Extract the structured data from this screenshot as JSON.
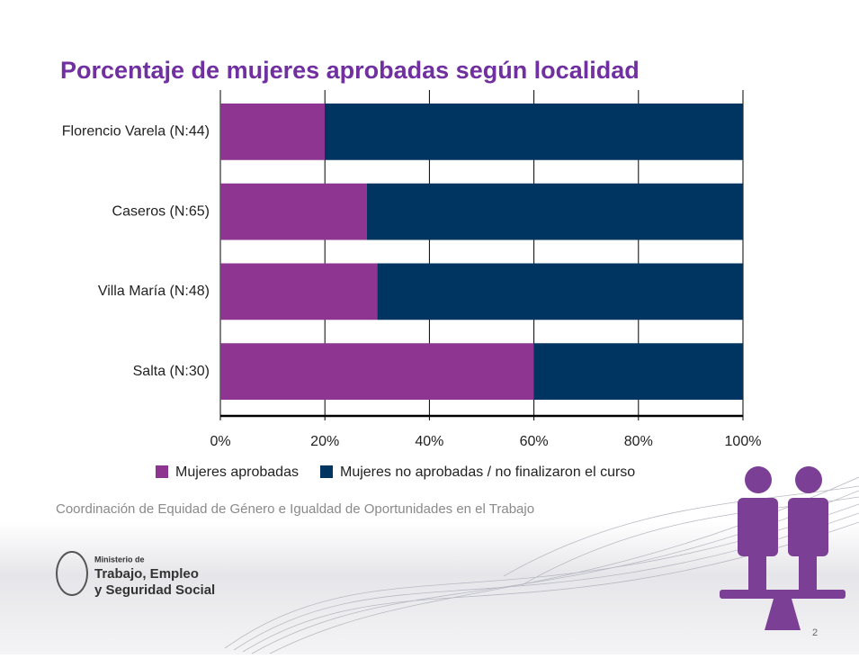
{
  "chart_data": {
    "type": "stacked-bar-horizontal",
    "title": "Porcentaje de mujeres aprobadas según localidad",
    "categories": [
      "Florencio Varela (N:44)",
      "Caseros (N:65)",
      "Villa María (N:48)",
      "Salta (N:30)"
    ],
    "series": [
      {
        "name": "Mujeres aprobadas",
        "color": "#8e3491",
        "values": [
          20,
          28,
          30,
          60
        ]
      },
      {
        "name": "Mujeres no aprobadas / no finalizaron el curso",
        "color": "#003562",
        "values": [
          80,
          72,
          70,
          40
        ]
      }
    ],
    "xlim": [
      0,
      100
    ],
    "xticks": [
      {
        "value": 0,
        "label": "0%"
      },
      {
        "value": 20,
        "label": "20%"
      },
      {
        "value": 40,
        "label": "40%"
      },
      {
        "value": 60,
        "label": "60%"
      },
      {
        "value": 80,
        "label": "80%"
      },
      {
        "value": 100,
        "label": "100%"
      }
    ],
    "grid": true
  },
  "footer": {
    "text": "Coordinación de Equidad de Género e Igualdad de Oportunidades en el Trabajo",
    "logo": [
      "Ministerio de",
      "Trabajo, Empleo",
      "y Seguridad Social"
    ],
    "page": "2"
  }
}
